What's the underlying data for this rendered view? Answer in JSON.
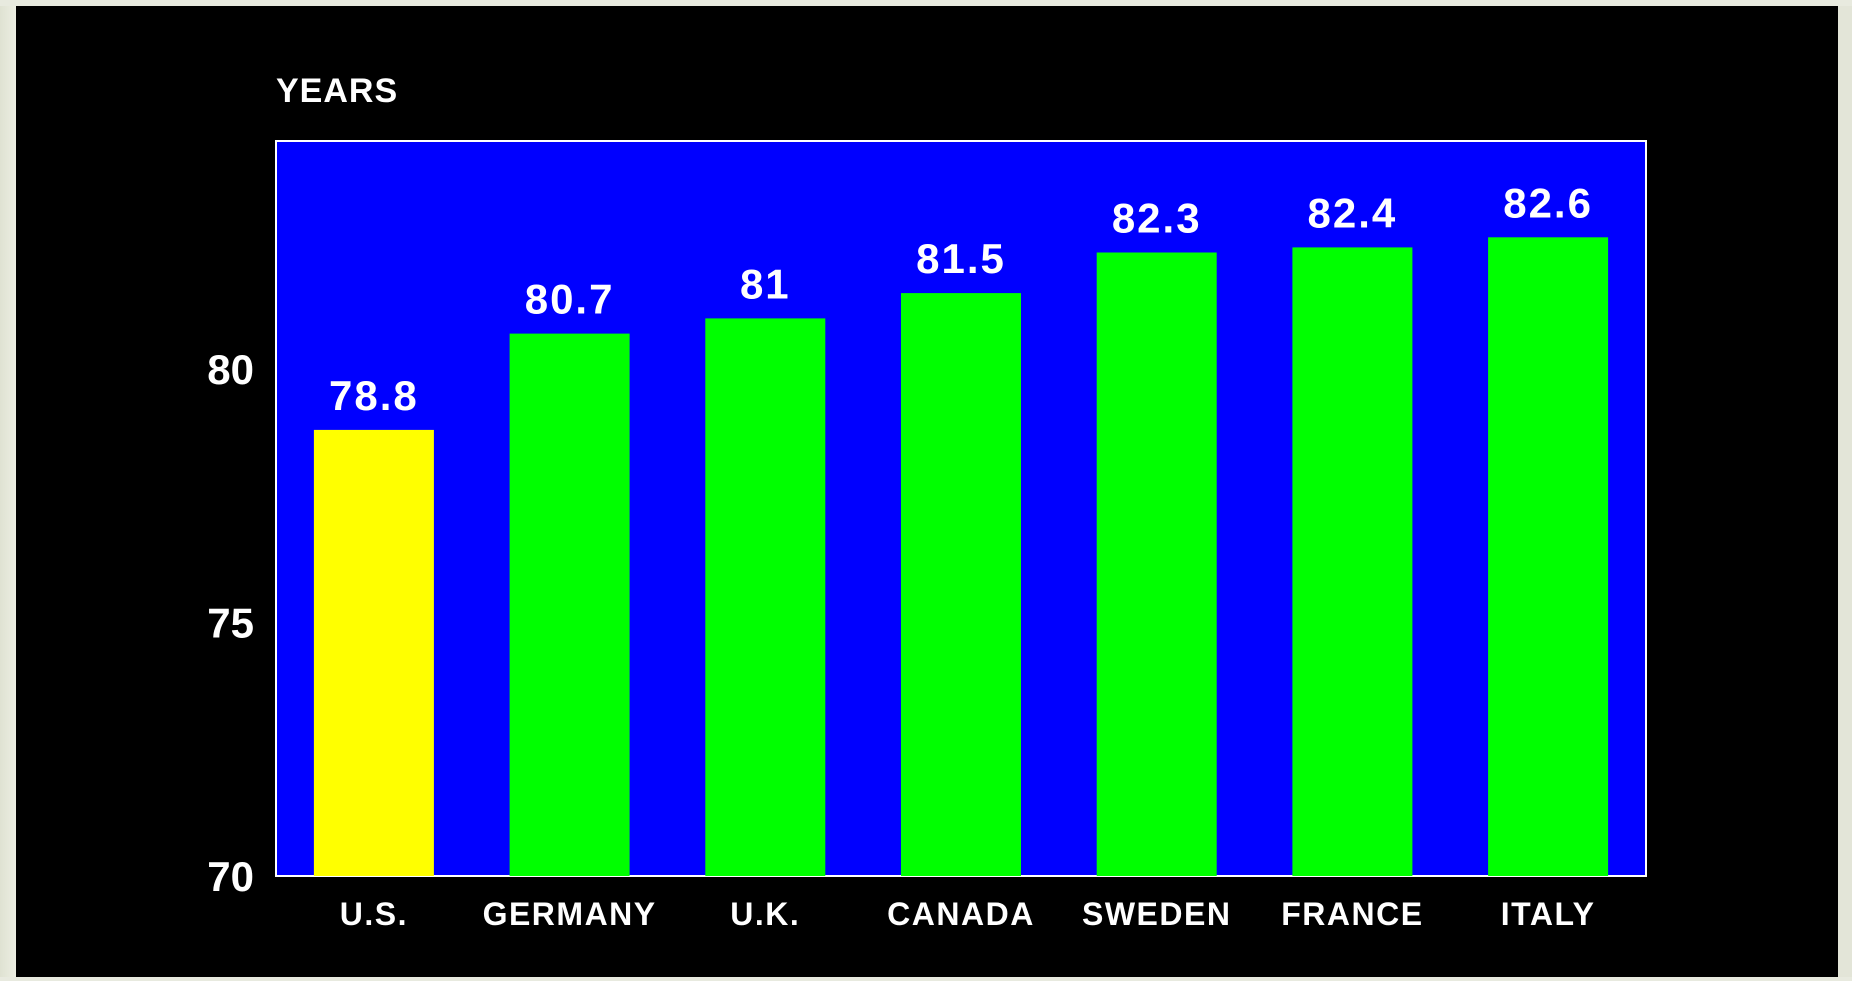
{
  "chart_data": {
    "type": "bar",
    "ylabel": "YEARS",
    "ylim": [
      70,
      84.5
    ],
    "yticks": [
      70,
      75,
      80
    ],
    "grid": false,
    "categories": [
      "U.S.",
      "GERMANY",
      "U.K.",
      "CANADA",
      "SWEDEN",
      "FRANCE",
      "ITALY"
    ],
    "values": [
      78.8,
      80.7,
      81,
      81.5,
      82.3,
      82.4,
      82.6
    ],
    "data_labels": [
      "78.8",
      "80.7",
      "81",
      "81.5",
      "82.3",
      "82.4",
      "82.6"
    ],
    "colors": {
      "plot_background": "#0000ff",
      "page_background": "#000000",
      "highlight_bar": "#ffff00",
      "default_bar": "#00ff00",
      "text": "#ffffff"
    },
    "highlighted_category": "U.S."
  }
}
